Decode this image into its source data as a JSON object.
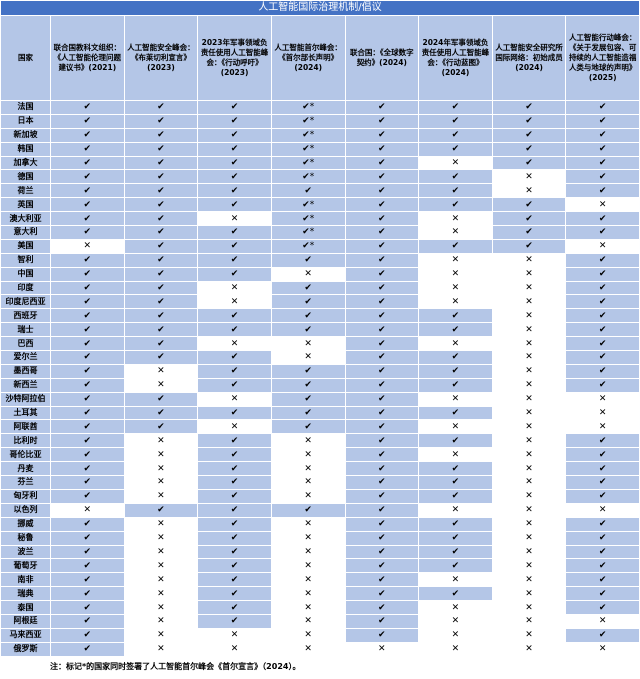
{
  "header": {
    "title": "人工智能国际治理机制/倡议",
    "country_label": "国家",
    "columns": [
      "联合国教科文组织：《人工智能伦理问题建议书》(2021)",
      "人工智能安全峰会：《布莱切利宣言》(2023)",
      "2023年军事领域负责任使用人工智能峰会：《行动呼吁》(2023)",
      "人工智能首尔峰会：《首尔部长声明》(2024)",
      "联合国：《全球数字契约》(2024)",
      "2024年军事领域负责任使用人工智能峰会：《行动蓝图》(2024)",
      "人工智能安全研究所国际网络：初始成员(2024)",
      "人工智能行动峰会：《关于发展包容、可持续的人工智能造福人类与地球的声明》(2025)"
    ]
  },
  "rows": [
    {
      "country": "法国",
      "cells": [
        "✔",
        "✔",
        "✔",
        "✔*",
        "✔",
        "✔",
        "✔",
        "✔"
      ]
    },
    {
      "country": "日本",
      "cells": [
        "✔",
        "✔",
        "✔",
        "✔*",
        "✔",
        "✔",
        "✔",
        "✔"
      ]
    },
    {
      "country": "新加坡",
      "cells": [
        "✔",
        "✔",
        "✔",
        "✔*",
        "✔",
        "✔",
        "✔",
        "✔"
      ]
    },
    {
      "country": "韩国",
      "cells": [
        "✔",
        "✔",
        "✔",
        "✔*",
        "✔",
        "✔",
        "✔",
        "✔"
      ]
    },
    {
      "country": "加拿大",
      "cells": [
        "✔",
        "✔",
        "✔",
        "✔*",
        "✔",
        "✕",
        "✔",
        "✔"
      ]
    },
    {
      "country": "德国",
      "cells": [
        "✔",
        "✔",
        "✔",
        "✔*",
        "✔",
        "✔",
        "✕",
        "✔"
      ]
    },
    {
      "country": "荷兰",
      "cells": [
        "✔",
        "✔",
        "✔",
        "✔",
        "✔",
        "✔",
        "✕",
        "✔"
      ]
    },
    {
      "country": "英国",
      "cells": [
        "✔",
        "✔",
        "✔",
        "✔*",
        "✔",
        "✔",
        "✔",
        "✕"
      ]
    },
    {
      "country": "澳大利亚",
      "cells": [
        "✔",
        "✔",
        "✕",
        "✔*",
        "✔",
        "✕",
        "✔",
        "✔"
      ]
    },
    {
      "country": "意大利",
      "cells": [
        "✔",
        "✔",
        "✔",
        "✔*",
        "✔",
        "✕",
        "✔",
        "✔"
      ]
    },
    {
      "country": "美国",
      "cells": [
        "✕",
        "✔",
        "✔",
        "✔*",
        "✔",
        "✔",
        "✔",
        "✕"
      ]
    },
    {
      "country": "智利",
      "cells": [
        "✔",
        "✔",
        "✔",
        "✔",
        "✔",
        "✕",
        "✕",
        "✔"
      ]
    },
    {
      "country": "中国",
      "cells": [
        "✔",
        "✔",
        "✔",
        "✕",
        "✔",
        "✕",
        "✕",
        "✔"
      ]
    },
    {
      "country": "印度",
      "cells": [
        "✔",
        "✔",
        "✕",
        "✔",
        "✔",
        "✕",
        "✕",
        "✔"
      ]
    },
    {
      "country": "印度尼西亚",
      "cells": [
        "✔",
        "✔",
        "✕",
        "✔",
        "✔",
        "✕",
        "✕",
        "✔"
      ]
    },
    {
      "country": "西班牙",
      "cells": [
        "✔",
        "✔",
        "✔",
        "✔",
        "✔",
        "✔",
        "✕",
        "✔"
      ]
    },
    {
      "country": "瑞士",
      "cells": [
        "✔",
        "✔",
        "✔",
        "✔",
        "✔",
        "✔",
        "✕",
        "✔"
      ]
    },
    {
      "country": "巴西",
      "cells": [
        "✔",
        "✔",
        "✕",
        "✕",
        "✔",
        "✕",
        "✕",
        "✔"
      ]
    },
    {
      "country": "爱尔兰",
      "cells": [
        "✔",
        "✔",
        "✔",
        "✕",
        "✔",
        "✔",
        "✕",
        "✔"
      ]
    },
    {
      "country": "墨西哥",
      "cells": [
        "✔",
        "✕",
        "✔",
        "✔",
        "✔",
        "✔",
        "✕",
        "✔"
      ]
    },
    {
      "country": "新西兰",
      "cells": [
        "✔",
        "✕",
        "✔",
        "✔",
        "✔",
        "✔",
        "✕",
        "✔"
      ]
    },
    {
      "country": "沙特阿拉伯",
      "cells": [
        "✔",
        "✔",
        "✕",
        "✔",
        "✔",
        "✕",
        "✕",
        "✕"
      ]
    },
    {
      "country": "土耳其",
      "cells": [
        "✔",
        "✔",
        "✔",
        "✔",
        "✔",
        "✔",
        "✕",
        "✕"
      ]
    },
    {
      "country": "阿联酋",
      "cells": [
        "✔",
        "✔",
        "✕",
        "✔",
        "✔",
        "✕",
        "✕",
        "✕"
      ]
    },
    {
      "country": "比利时",
      "cells": [
        "✔",
        "✕",
        "✔",
        "✕",
        "✔",
        "✔",
        "✕",
        "✔"
      ]
    },
    {
      "country": "哥伦比亚",
      "cells": [
        "✔",
        "✕",
        "✔",
        "✕",
        "✔",
        "✕",
        "✕",
        "✔"
      ]
    },
    {
      "country": "丹麦",
      "cells": [
        "✔",
        "✕",
        "✔",
        "✕",
        "✔",
        "✔",
        "✕",
        "✔"
      ]
    },
    {
      "country": "芬兰",
      "cells": [
        "✔",
        "✕",
        "✔",
        "✕",
        "✔",
        "✔",
        "✕",
        "✔"
      ]
    },
    {
      "country": "匈牙利",
      "cells": [
        "✔",
        "✕",
        "✔",
        "✕",
        "✔",
        "✔",
        "✕",
        "✔"
      ]
    },
    {
      "country": "以色列",
      "cells": [
        "✕",
        "✔",
        "✔",
        "✔",
        "✔",
        "✕",
        "✕",
        "✕"
      ]
    },
    {
      "country": "挪威",
      "cells": [
        "✔",
        "✕",
        "✔",
        "✕",
        "✔",
        "✔",
        "✕",
        "✔"
      ]
    },
    {
      "country": "秘鲁",
      "cells": [
        "✔",
        "✕",
        "✔",
        "✕",
        "✔",
        "✔",
        "✕",
        "✔"
      ]
    },
    {
      "country": "波兰",
      "cells": [
        "✔",
        "✕",
        "✔",
        "✕",
        "✔",
        "✔",
        "✕",
        "✔"
      ]
    },
    {
      "country": "葡萄牙",
      "cells": [
        "✔",
        "✕",
        "✔",
        "✕",
        "✔",
        "✔",
        "✕",
        "✔"
      ]
    },
    {
      "country": "南非",
      "cells": [
        "✔",
        "✕",
        "✔",
        "✕",
        "✔",
        "✕",
        "✕",
        "✔"
      ]
    },
    {
      "country": "瑞典",
      "cells": [
        "✔",
        "✕",
        "✔",
        "✕",
        "✔",
        "✔",
        "✕",
        "✔"
      ]
    },
    {
      "country": "泰国",
      "cells": [
        "✔",
        "✕",
        "✔",
        "✕",
        "✔",
        "✕",
        "✕",
        "✔"
      ]
    },
    {
      "country": "阿根廷",
      "cells": [
        "✔",
        "✕",
        "✔",
        "✕",
        "✔",
        "✕",
        "✕",
        "✕"
      ]
    },
    {
      "country": "马来西亚",
      "cells": [
        "✔",
        "✕",
        "✕",
        "✕",
        "✔",
        "✕",
        "✕",
        "✔"
      ]
    },
    {
      "country": "俄罗斯",
      "cells": [
        "✔",
        "✕",
        "✕",
        "✕",
        "✕",
        "✕",
        "✕",
        "✕"
      ]
    }
  ],
  "note": "注：标记*的国家同时签署了人工智能首尔峰会《首尔宣言》（2024）。"
}
